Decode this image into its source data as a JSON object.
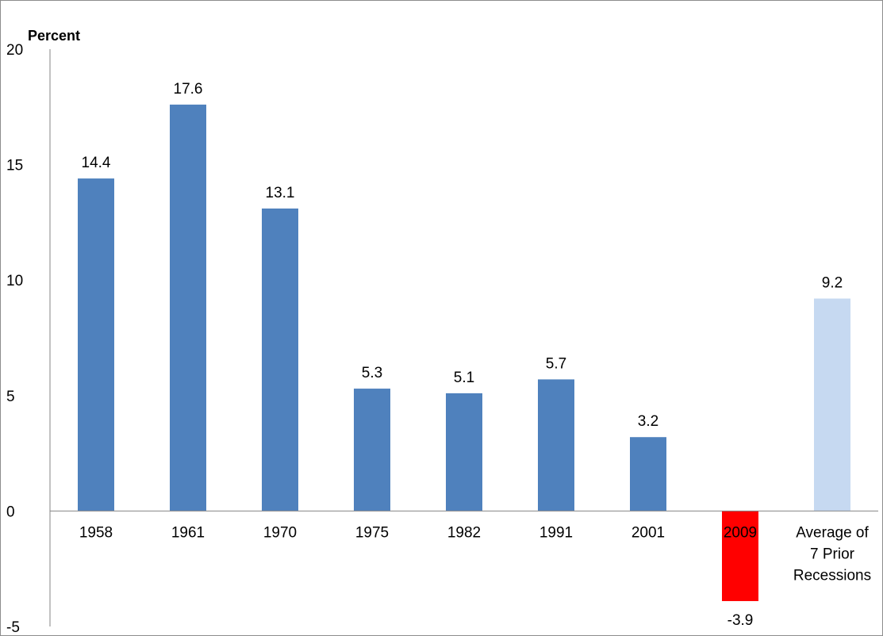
{
  "chart_data": {
    "type": "bar",
    "title": "",
    "xlabel": "",
    "ylabel": "Percent",
    "ylim": [
      -5,
      20
    ],
    "yticks": [
      "20",
      "15",
      "10",
      "5",
      "0",
      "-5"
    ],
    "grid": false,
    "legend": "none",
    "categories": [
      "1958",
      "1961",
      "1970",
      "1975",
      "1982",
      "1991",
      "2001",
      "2009",
      "Average of 7 Prior Recessions"
    ],
    "category_lines": [
      [
        "1958"
      ],
      [
        "1961"
      ],
      [
        "1970"
      ],
      [
        "1975"
      ],
      [
        "1982"
      ],
      [
        "1991"
      ],
      [
        "2001"
      ],
      [
        "2009"
      ],
      [
        "Average of",
        "7 Prior",
        "Recessions"
      ]
    ],
    "values": [
      14.4,
      17.6,
      13.1,
      5.3,
      5.1,
      5.7,
      3.2,
      -3.9,
      9.2
    ],
    "value_labels": [
      "14.4",
      "17.6",
      "13.1",
      "5.3",
      "5.1",
      "5.7",
      "3.2",
      "-3.9",
      "9.2"
    ],
    "colors": [
      "#4f81bd",
      "#4f81bd",
      "#4f81bd",
      "#4f81bd",
      "#4f81bd",
      "#4f81bd",
      "#4f81bd",
      "#ff0000",
      "#c6d9f1"
    ]
  }
}
